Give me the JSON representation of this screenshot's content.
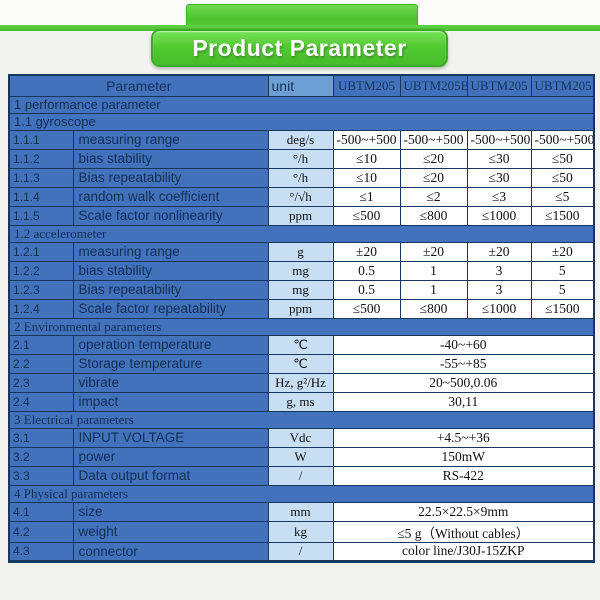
{
  "page": {
    "title": "Product Parameter"
  },
  "colors": {
    "accent_green": "#52ca33",
    "accent_green_dark": "#3dab26",
    "table_label_blue": "#4372bc",
    "unit_header_blue": "#6c9fd4",
    "unit_cell_blue": "#c8def2",
    "border_navy": "#17375e",
    "label_text_navy": "#112f55"
  },
  "table": {
    "headers": {
      "parameter": "Parameter",
      "unit": "unit",
      "models": [
        "UBTM205",
        "UBTM205B",
        "UBTM205",
        "UBTM205"
      ]
    },
    "rows": [
      {
        "type": "section",
        "label": "1 performance parameter",
        "font": "sans"
      },
      {
        "type": "section",
        "label": "1.1 gyroscope",
        "font": "sans"
      },
      {
        "type": "data",
        "num": "1.1.1",
        "name": "measuring range",
        "unit": "deg/s",
        "values": [
          "-500~+500",
          "-500~+500",
          "-500~+500",
          "-500~+500"
        ]
      },
      {
        "type": "data",
        "num": "1.1.2",
        "name": "bias stability",
        "unit": "°/h",
        "values": [
          "≤10",
          "≤20",
          "≤30",
          "≤50"
        ]
      },
      {
        "type": "data",
        "num": "1.1.3",
        "name": "Bias repeatability",
        "unit": "°/h",
        "values": [
          "≤10",
          "≤20",
          "≤30",
          "≤50"
        ]
      },
      {
        "type": "data",
        "num": "1.1.4",
        "name": "random walk coefficient",
        "unit": "°/√h",
        "values": [
          "≤1",
          "≤2",
          "≤3",
          "≤5"
        ]
      },
      {
        "type": "data",
        "num": "1.1.5",
        "name": "Scale factor nonlinearity",
        "unit": "ppm",
        "values": [
          "≤500",
          "≤800",
          "≤1000",
          "≤1500"
        ]
      },
      {
        "type": "section",
        "label": "1.2 accelerometer",
        "font": "serif"
      },
      {
        "type": "data",
        "num": "1.2.1",
        "name": "measuring range",
        "unit": "g",
        "values": [
          "±20",
          "±20",
          "±20",
          "±20"
        ]
      },
      {
        "type": "data",
        "num": "1.2.2",
        "name": "bias stability",
        "unit": "mg",
        "values": [
          "0.5",
          "1",
          "3",
          "5"
        ]
      },
      {
        "type": "data",
        "num": "1.2.3",
        "name": "Bias repeatability",
        "unit": "mg",
        "values": [
          "0.5",
          "1",
          "3",
          "5"
        ]
      },
      {
        "type": "data",
        "num": "1.2.4",
        "name": "Scale factor repeatability",
        "unit": "ppm",
        "values": [
          "≤500",
          "≤800",
          "≤1000",
          "≤1500"
        ]
      },
      {
        "type": "section",
        "label": "2 Environmental parameters",
        "font": "serif"
      },
      {
        "type": "data",
        "num": "2.1",
        "name": "operation temperature",
        "unit": "℃",
        "span_value": "-40~+60"
      },
      {
        "type": "data",
        "num": "2.2",
        "name": "Storage temperature",
        "unit": "℃",
        "span_value": "-55~+85"
      },
      {
        "type": "data",
        "num": "2.3",
        "name": "vibrate",
        "unit": "Hz, g²/Hz",
        "span_value": "20~500,0.06"
      },
      {
        "type": "data",
        "num": "2.4",
        "name": "impact",
        "unit": "g, ms",
        "span_value": "30,11"
      },
      {
        "type": "section",
        "label": "3 Electrical parameters",
        "font": "serif"
      },
      {
        "type": "data",
        "num": "3.1",
        "name": "INPUT VOLTAGE",
        "unit": "Vdc",
        "span_value": "+4.5~+36"
      },
      {
        "type": "data",
        "num": "3.2",
        "name": "power",
        "unit": "W",
        "span_value": "150mW"
      },
      {
        "type": "data",
        "num": "3.3",
        "name": "Data output format",
        "unit": "/",
        "span_value": "RS-422"
      },
      {
        "type": "section",
        "label": "4 Physical parameters",
        "font": "serif"
      },
      {
        "type": "data",
        "num": "4.1",
        "name": "size",
        "unit": "mm",
        "span_value": "22.5×22.5×9mm"
      },
      {
        "type": "data",
        "num": "4.2",
        "name": "weight",
        "unit": "kg",
        "span_value": "≤5 g（Without cables）"
      },
      {
        "type": "data",
        "num": "4.3",
        "name": "connector",
        "unit": "/",
        "span_value": "color line/J30J-15ZKP"
      }
    ]
  }
}
